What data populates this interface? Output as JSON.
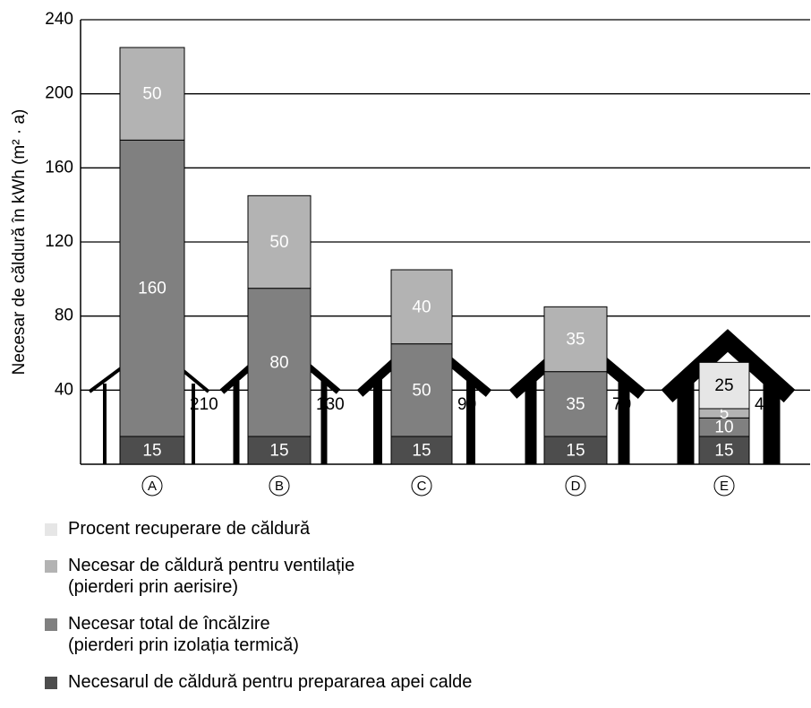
{
  "chart_data": {
    "type": "stacked_bar",
    "y_label": "Necesar de căldură în kWh (m² · a)",
    "categories": [
      "A",
      "B",
      "C",
      "D",
      "E"
    ],
    "series": [
      {
        "name": "Necesarul de căldură pentru prepararea apei calde",
        "color": "#4d4d4d",
        "values": [
          15,
          15,
          15,
          15,
          15
        ]
      },
      {
        "name": "Necesar total de încălzire\n(pierderi prin izolația termică)",
        "color": "#808080",
        "values": [
          160,
          80,
          50,
          35,
          10
        ]
      },
      {
        "name": "Necesar de căldură pentru ventilație\n(pierderi prin aerisire)",
        "color": "#b3b3b3",
        "values": [
          50,
          50,
          40,
          35,
          5
        ]
      },
      {
        "name": "Procent recuperare de căldură",
        "color": "#e6e6e6",
        "values": [
          null,
          null,
          null,
          null,
          25
        ]
      }
    ],
    "annotations": [
      "210",
      "130",
      "90",
      "70",
      "40"
    ],
    "ylim": [
      0,
      240
    ],
    "yticks": [
      40,
      80,
      120,
      160,
      200,
      240
    ],
    "grid": true
  }
}
